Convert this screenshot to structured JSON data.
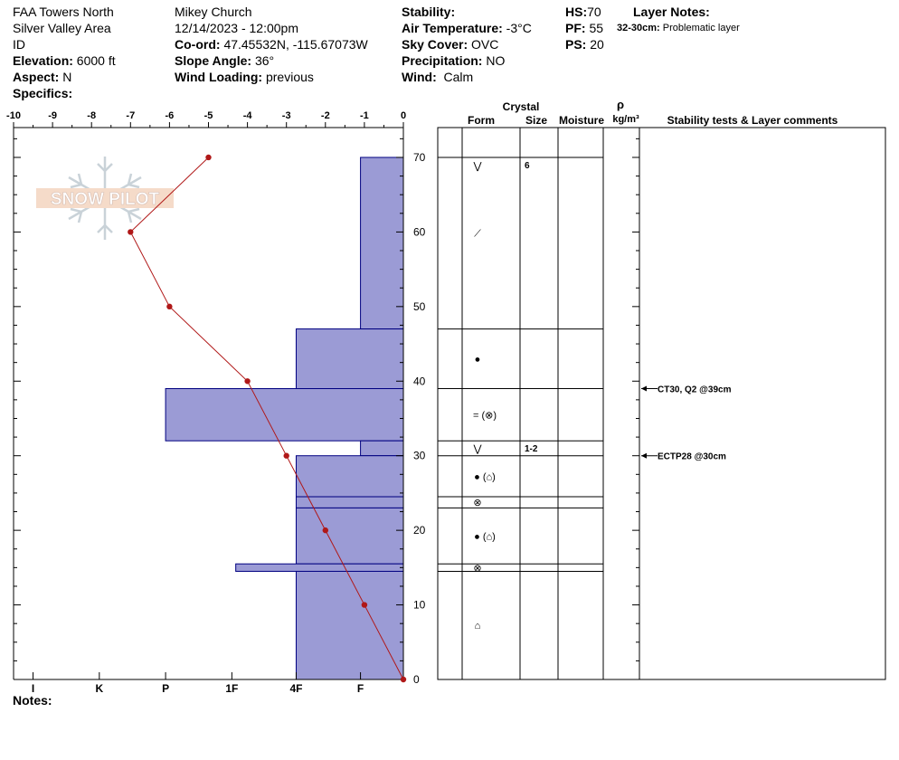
{
  "header": {
    "location": "FAA Towers North",
    "area": "Silver Valley Area",
    "state": "ID",
    "elevation_label": "Elevation:",
    "elevation_value": "6000 ft",
    "aspect_label": "Aspect:",
    "aspect_value": "N",
    "specifics_label": "Specifics:",
    "observer": "Mikey Church",
    "datetime": "12/14/2023 - 12:00pm",
    "coord_label": "Co-ord:",
    "coord_value": "47.45532N, -115.67073W",
    "slope_label": "Slope Angle:",
    "slope_value": "36°",
    "wind_loading_label": "Wind Loading:",
    "wind_loading_value": "previous",
    "stability_label": "Stability:",
    "air_temp_label": "Air Temperature:",
    "air_temp_value": "-3°C",
    "sky_label": "Sky Cover:",
    "sky_value": "OVC",
    "precip_label": "Precipitation:",
    "precip_value": "NO",
    "wind_label": "Wind:",
    "wind_value": "Calm",
    "hs_label": "HS:",
    "hs_value": "70",
    "pf_label": "PF:",
    "pf_value": "55",
    "ps_label": "PS:",
    "ps_value": "20",
    "layer_notes_label": "Layer Notes:",
    "layer_note_range": "32-30cm:",
    "layer_note_text": "Problematic layer",
    "notes_label": "Notes:"
  },
  "watermark": "SNOW PILOT",
  "columns": {
    "crystal": "Crystal",
    "form": "Form",
    "size": "Size",
    "moisture": "Moisture",
    "rho": "ρ",
    "density_unit": "kg/m³",
    "comments": "Stability tests & Layer comments"
  },
  "colors": {
    "hardness_fill": "#9b9bd5",
    "hardness_stroke": "#000080",
    "temp_line": "#b01818"
  },
  "chart_data": {
    "type": "snow-profile",
    "temp_axis": {
      "range": [
        -10,
        0
      ],
      "ticks": [
        "-10",
        "-9",
        "-8",
        "-7",
        "-6",
        "-5",
        "-4",
        "-3",
        "-2",
        "-1",
        "0"
      ]
    },
    "height_axis": {
      "range": [
        0,
        70
      ],
      "ticks": [
        "0",
        "10",
        "20",
        "30",
        "40",
        "50",
        "60",
        "70"
      ]
    },
    "hardness_axis": {
      "labels": [
        "I",
        "K",
        "P",
        "1F",
        "4F",
        "F"
      ],
      "values": [
        -9.5,
        -7.8,
        -6.1,
        -4.4,
        -2.75,
        -1.1
      ]
    },
    "temperature_profile": [
      {
        "height": 70,
        "temp": -5
      },
      {
        "height": 60,
        "temp": -7
      },
      {
        "height": 50,
        "temp": -6
      },
      {
        "height": 40,
        "temp": -4
      },
      {
        "height": 30,
        "temp": -3
      },
      {
        "height": 20,
        "temp": -2
      },
      {
        "height": 10,
        "temp": -1
      },
      {
        "height": 0,
        "temp": 0
      }
    ],
    "hardness_layers": [
      {
        "top": 70,
        "bottom": 47,
        "hardness": -1.1
      },
      {
        "top": 47,
        "bottom": 39,
        "hardness": -2.75
      },
      {
        "top": 39,
        "bottom": 32,
        "hardness": -6.1
      },
      {
        "top": 32,
        "bottom": 30,
        "hardness": -1.1
      },
      {
        "top": 30,
        "bottom": 24.5,
        "hardness": -2.75
      },
      {
        "top": 24.5,
        "bottom": 23,
        "hardness": -2.75
      },
      {
        "top": 23,
        "bottom": 15.5,
        "hardness": -2.75
      },
      {
        "top": 15.5,
        "bottom": 14.5,
        "hardness": -4.3
      },
      {
        "top": 14.5,
        "bottom": 0,
        "hardness": -2.75
      }
    ],
    "layers": [
      {
        "top": 70,
        "bottom": 47,
        "form_symbols": [
          "⋁",
          "⟋"
        ],
        "size": "6"
      },
      {
        "top": 47,
        "bottom": 39,
        "form_symbols": [
          "●"
        ],
        "size": ""
      },
      {
        "top": 39,
        "bottom": 32,
        "form_symbols": [
          "= (⊗)"
        ],
        "size": ""
      },
      {
        "top": 32,
        "bottom": 30,
        "form_symbols": [
          "⋁"
        ],
        "size": "1-2"
      },
      {
        "top": 30,
        "bottom": 24.5,
        "form_symbols": [
          "● (⌂)"
        ],
        "size": ""
      },
      {
        "top": 24.5,
        "bottom": 23,
        "form_symbols": [
          "⊗"
        ],
        "size": ""
      },
      {
        "top": 23,
        "bottom": 15.5,
        "form_symbols": [
          "● (⌂)"
        ],
        "size": ""
      },
      {
        "top": 15.5,
        "bottom": 14.5,
        "form_symbols": [
          "⊗"
        ],
        "size": ""
      },
      {
        "top": 14.5,
        "bottom": 0,
        "form_symbols": [
          "⌂"
        ],
        "size": ""
      }
    ],
    "stability_tests": [
      {
        "height": 39,
        "text": "CT30, Q2 @39cm"
      },
      {
        "height": 30,
        "text": "ECTP28 @30cm"
      }
    ]
  }
}
